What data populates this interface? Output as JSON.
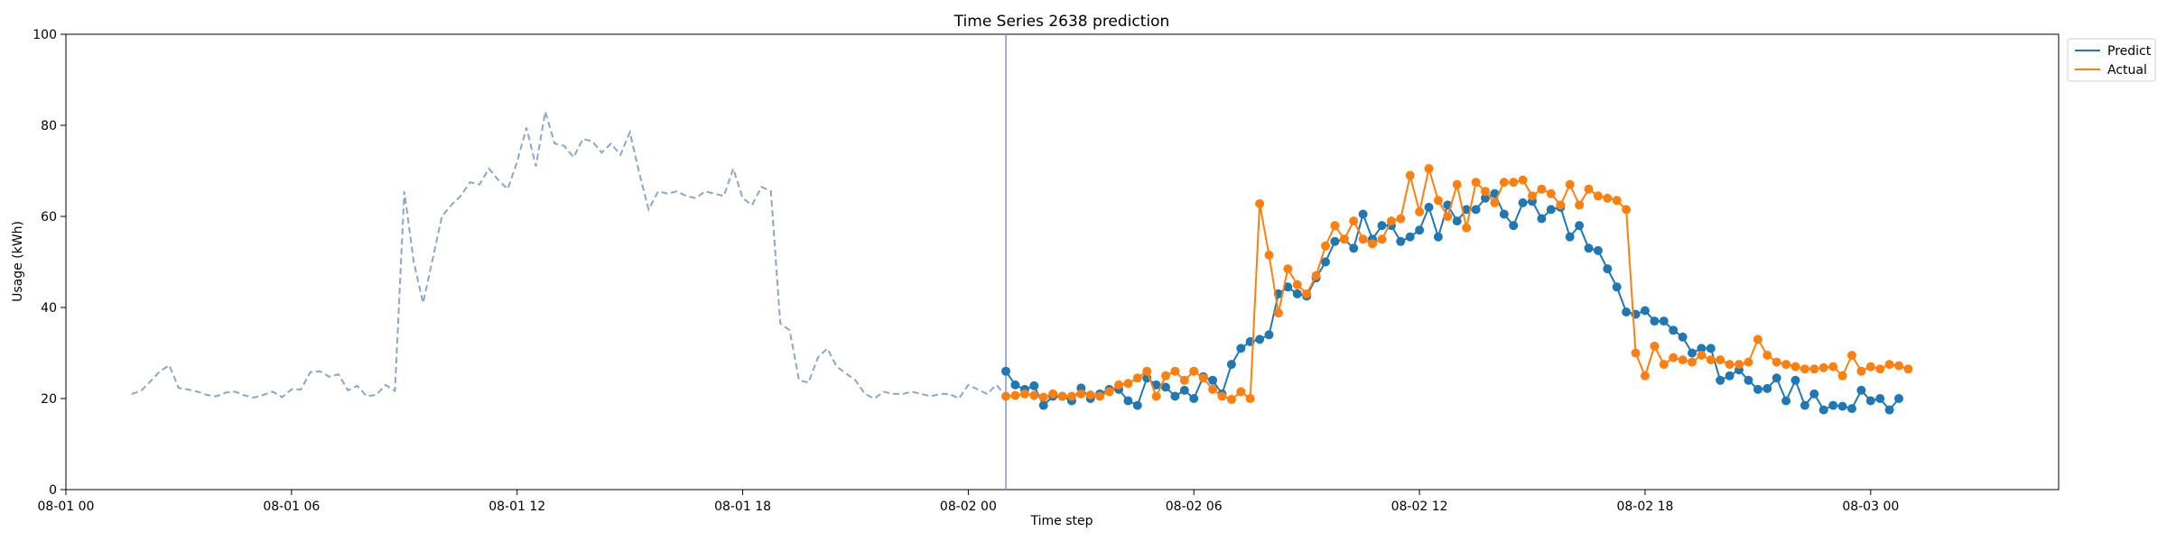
{
  "chart_data": {
    "type": "line",
    "title": "Time Series 2638 prediction",
    "xlabel": "Time step",
    "ylabel": "Usage (kWh)",
    "ylim": [
      0,
      100
    ],
    "yticks": [
      0,
      20,
      40,
      60,
      80,
      100
    ],
    "xlim": [
      "2024-08-01T00:00",
      "2024-08-03T05:00"
    ],
    "xticks": [
      "08-01 00",
      "08-01 06",
      "08-01 12",
      "08-01 18",
      "08-02 00",
      "08-02 06",
      "08-02 12",
      "08-02 18",
      "08-03 00"
    ],
    "split_time": "2024-08-02T01:00",
    "grid": false,
    "legend": "top-right",
    "history": {
      "start": "2024-08-01T01:45",
      "step_minutes": 15,
      "values": [
        21,
        21.7,
        23.8,
        26,
        27.3,
        22.3,
        22,
        21.5,
        20.8,
        20.5,
        21.3,
        21.5,
        20.7,
        20.2,
        20.8,
        21.5,
        20.3,
        22,
        22,
        25.8,
        26,
        24.8,
        25.3,
        21.8,
        22.8,
        20.5,
        20.8,
        23,
        21.7,
        65.5,
        50,
        41,
        50.5,
        60,
        62.5,
        64.5,
        67.5,
        67,
        70.5,
        68,
        66,
        72,
        79.5,
        71,
        83,
        76,
        75.5,
        73,
        77,
        76.5,
        74,
        76,
        73.5,
        78.5,
        69.5,
        61.5,
        65.5,
        65,
        65.5,
        64.5,
        64,
        65.5,
        65,
        64.5,
        70.5,
        64,
        62.5,
        66.5,
        65.5,
        36.5,
        35,
        24,
        23.5,
        29,
        31,
        27,
        25.5,
        24,
        21,
        20,
        21.5,
        21,
        21,
        21.5,
        21,
        20.5,
        21,
        21,
        20,
        23,
        22,
        21,
        23,
        20.5,
        21,
        20.5,
        20,
        21,
        20.8,
        20.5
      ]
    },
    "series": [
      {
        "name": "Predict",
        "color": "#1f77b4",
        "start": "2024-08-02T01:00",
        "step_minutes": 15,
        "values": [
          26,
          23,
          22,
          22.8,
          18.5,
          20.5,
          20.5,
          19.5,
          22.3,
          20,
          21,
          22,
          22,
          19.5,
          18.5,
          24.5,
          23,
          22.5,
          20.5,
          21.8,
          20,
          24.8,
          24,
          21,
          27.5,
          31,
          32.5,
          33,
          34,
          43,
          44.5,
          43,
          42.5,
          46.5,
          50,
          54.5,
          55,
          53,
          60.5,
          55,
          58,
          58,
          54.5,
          55.5,
          57,
          62,
          55.5,
          62.5,
          59,
          61.5,
          61.5,
          64,
          65,
          60.5,
          58,
          63,
          63.3,
          59.5,
          61.5,
          62,
          55.5,
          58,
          53,
          52.5,
          48.5,
          44.5,
          39,
          38.5,
          39.3,
          37,
          37,
          35,
          33.5,
          30,
          31,
          31,
          24,
          25,
          26.3,
          24,
          22,
          22.2,
          24.5,
          19.5,
          24,
          18.5,
          21,
          17.5,
          18.5,
          18.3,
          17.8,
          21.8,
          19.5,
          20,
          17.5,
          20
        ]
      },
      {
        "name": "Actual",
        "color": "#ff7f0e",
        "start": "2024-08-02T01:00",
        "step_minutes": 15,
        "values": [
          20.5,
          20.7,
          21,
          20.7,
          20.3,
          21,
          20.5,
          20.5,
          21,
          20.8,
          20.5,
          21.5,
          23,
          23.3,
          24.5,
          26,
          20.5,
          25,
          26,
          24,
          26,
          24.5,
          22,
          20.5,
          19.8,
          21.5,
          20,
          62.8,
          51.5,
          38.8,
          48.5,
          45,
          43,
          47,
          53.5,
          58,
          55,
          59,
          55,
          54,
          55,
          59,
          59.5,
          69,
          61,
          70.5,
          63.5,
          60,
          67,
          57.5,
          67.5,
          65.5,
          63,
          67.5,
          67.5,
          68,
          64.5,
          66,
          65,
          62.5,
          67,
          62.5,
          66,
          64.5,
          64,
          63.5,
          61.5,
          30,
          25,
          31.5,
          27.5,
          29,
          28.5,
          28,
          29.5,
          28.5,
          28.5,
          27.5,
          27.5,
          28,
          33,
          29.5,
          28,
          27.5,
          27,
          26.5,
          26.5,
          26.8,
          27,
          25,
          29.5,
          26,
          27,
          26.5,
          27.5,
          27.2,
          26.5
        ]
      }
    ]
  }
}
